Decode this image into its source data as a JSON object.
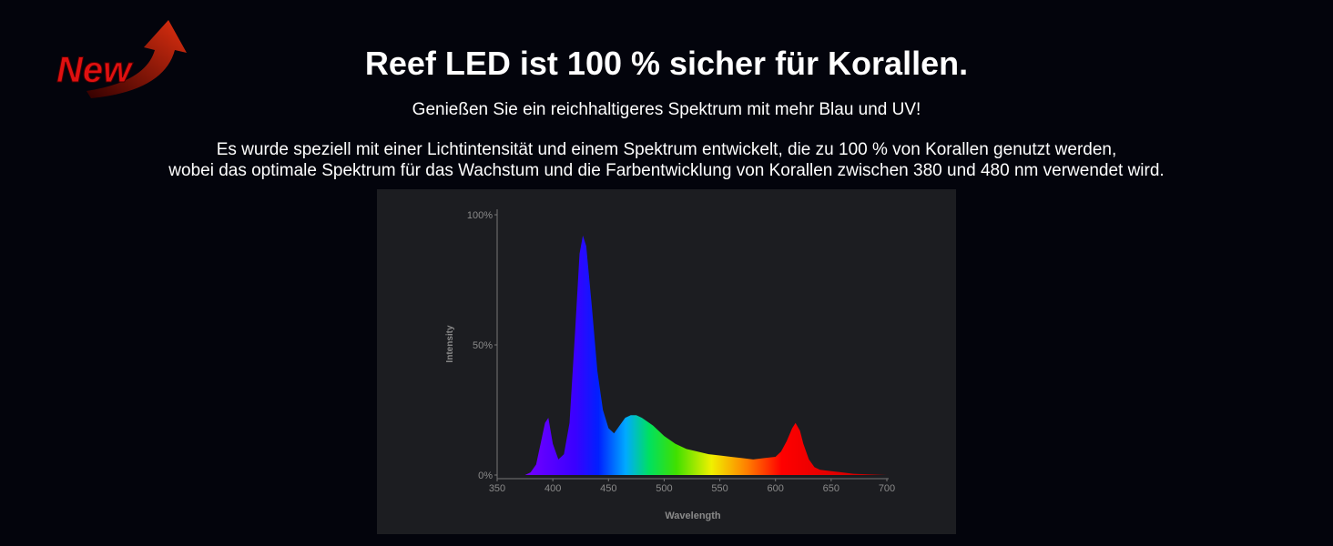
{
  "badge": "New",
  "header": {
    "title": "Reef LED ist 100 % sicher für Korallen.",
    "subtitle": "Genießen Sie ein reichhaltigeres Spektrum mit mehr Blau und UV!",
    "description": [
      "Es wurde speziell mit einer Lichtintensität und einem Spektrum entwickelt, die zu 100 % von Korallen genutzt werden,",
      "wobei das optimale Spektrum für das Wachstum und die Farbentwicklung von Korallen zwischen 380 und 480 nm verwendet wird."
    ]
  },
  "chart_data": {
    "type": "area",
    "x_label": "Wavelength",
    "y_label": "Intensity",
    "x": [
      375,
      380,
      385,
      390,
      393,
      396,
      400,
      405,
      410,
      415,
      420,
      424,
      427,
      430,
      435,
      440,
      445,
      450,
      455,
      460,
      465,
      470,
      475,
      480,
      490,
      500,
      510,
      520,
      530,
      540,
      550,
      560,
      570,
      580,
      590,
      600,
      605,
      610,
      615,
      618,
      622,
      625,
      630,
      635,
      640,
      650,
      660,
      670,
      680,
      700
    ],
    "values": [
      0,
      1,
      4,
      14,
      20,
      22,
      12,
      6,
      8,
      20,
      55,
      85,
      92,
      88,
      65,
      40,
      25,
      18,
      16,
      19,
      22,
      23,
      23,
      22,
      19,
      15,
      12,
      10,
      9,
      8,
      7.5,
      7,
      6.5,
      6,
      6.5,
      7,
      9,
      13,
      18,
      20,
      17,
      12,
      6,
      3,
      2,
      1.5,
      1,
      0.5,
      0.3,
      0
    ],
    "xlim": [
      350,
      700
    ],
    "xticks": [
      350,
      400,
      450,
      500,
      550,
      600,
      650,
      700
    ],
    "ylim": [
      0,
      100
    ],
    "yticks": [
      {
        "value": 0,
        "label": "0%"
      },
      {
        "value": 50,
        "label": "50%"
      },
      {
        "value": 100,
        "label": "100%"
      }
    ]
  }
}
